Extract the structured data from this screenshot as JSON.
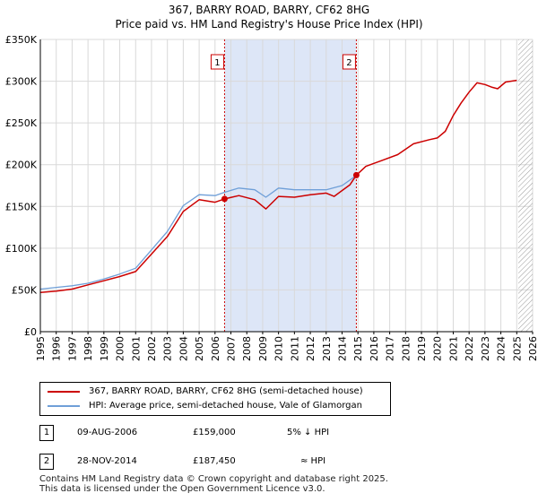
{
  "header": {
    "title_line1": "367, BARRY ROAD, BARRY, CF62 8HG",
    "title_line2": "Price paid vs. HM Land Registry's House Price Index (HPI)"
  },
  "colors": {
    "price_line": "#cc0000",
    "hpi_line": "#6f9fd8",
    "shade": "#dde6f7",
    "marker_border": "#cc0000",
    "grid": "#d9d9d9"
  },
  "legend": {
    "items": [
      {
        "label": "367, BARRY ROAD, BARRY, CF62 8HG (semi-detached house)"
      },
      {
        "label": "HPI: Average price, semi-detached house, Vale of Glamorgan"
      }
    ]
  },
  "transactions": [
    {
      "num": "1",
      "date": "09-AUG-2006",
      "price": "£159,000",
      "hpi_rel": "5% ↓ HPI"
    },
    {
      "num": "2",
      "date": "28-NOV-2014",
      "price": "£187,450",
      "hpi_rel": "≈ HPI"
    }
  ],
  "footer": {
    "line1": "Contains HM Land Registry data © Crown copyright and database right 2025.",
    "line2": "This data is licensed under the Open Government Licence v3.0."
  },
  "chart_data": {
    "type": "line",
    "title": "367, BARRY ROAD, BARRY, CF62 8HG",
    "subtitle": "Price paid vs. HM Land Registry's House Price Index (HPI)",
    "xlabel": "",
    "ylabel": "",
    "xlim": [
      1995,
      2026
    ],
    "ylim": [
      0,
      350000
    ],
    "x_ticks": [
      "1995",
      "1996",
      "1997",
      "1998",
      "1999",
      "2000",
      "2001",
      "2002",
      "2003",
      "2004",
      "2005",
      "2006",
      "2007",
      "2008",
      "2009",
      "2010",
      "2011",
      "2012",
      "2013",
      "2014",
      "2015",
      "2016",
      "2017",
      "2018",
      "2019",
      "2020",
      "2021",
      "2022",
      "2023",
      "2024",
      "2025",
      "2026"
    ],
    "y_ticks": [
      {
        "value": 0,
        "label": "£0"
      },
      {
        "value": 50000,
        "label": "£50K"
      },
      {
        "value": 100000,
        "label": "£100K"
      },
      {
        "value": 150000,
        "label": "£150K"
      },
      {
        "value": 200000,
        "label": "£200K"
      },
      {
        "value": 250000,
        "label": "£250K"
      },
      {
        "value": 300000,
        "label": "£300K"
      },
      {
        "value": 350000,
        "label": "£350K"
      }
    ],
    "grid": true,
    "shaded_period": [
      2006.6,
      2014.9
    ],
    "future_hatch_from": 2025.1,
    "sale_markers": [
      {
        "label": "1",
        "x": 2006.6,
        "y": 159000
      },
      {
        "label": "2",
        "x": 2014.9,
        "y": 187450
      }
    ],
    "series": [
      {
        "name": "367, BARRY ROAD, BARRY, CF62 8HG (semi-detached house)",
        "x": [
          1995.0,
          1996.0,
          1997.0,
          1998.0,
          1999.0,
          2000.0,
          2001.0,
          2002.0,
          2003.0,
          2004.0,
          2005.0,
          2006.0,
          2006.6,
          2007.5,
          2008.5,
          2009.2,
          2010.0,
          2011.0,
          2012.0,
          2013.0,
          2013.5,
          2014.5,
          2014.9,
          2015.5,
          2016.5,
          2017.5,
          2018.5,
          2019.5,
          2020.0,
          2020.5,
          2021.0,
          2021.5,
          2022.0,
          2022.5,
          2023.0,
          2023.4,
          2023.8,
          2024.3,
          2025.0
        ],
        "y": [
          47000,
          48500,
          51000,
          56000,
          61000,
          66000,
          72000,
          93000,
          114000,
          144000,
          158000,
          155000,
          159000,
          163000,
          158000,
          147000,
          162000,
          161000,
          164000,
          166000,
          162000,
          176000,
          187450,
          198000,
          205000,
          212000,
          225000,
          230000,
          232000,
          240000,
          259000,
          274000,
          287000,
          298000,
          296000,
          293000,
          291000,
          299000,
          301000
        ]
      },
      {
        "name": "HPI: Average price, semi-detached house, Vale of Glamorgan",
        "x": [
          1995.0,
          1996.0,
          1997.0,
          1998.0,
          1999.0,
          2000.0,
          2001.0,
          2002.0,
          2003.0,
          2004.0,
          2005.0,
          2006.0,
          2006.6,
          2007.5,
          2008.5,
          2009.2,
          2010.0,
          2011.0,
          2012.0,
          2013.0,
          2014.0,
          2014.9
        ],
        "y": [
          51000,
          53000,
          55000,
          58000,
          63000,
          69000,
          76000,
          98000,
          120000,
          151000,
          164000,
          163000,
          167000,
          172000,
          170000,
          161000,
          172000,
          170000,
          170000,
          170000,
          175000,
          187000
        ]
      }
    ]
  }
}
